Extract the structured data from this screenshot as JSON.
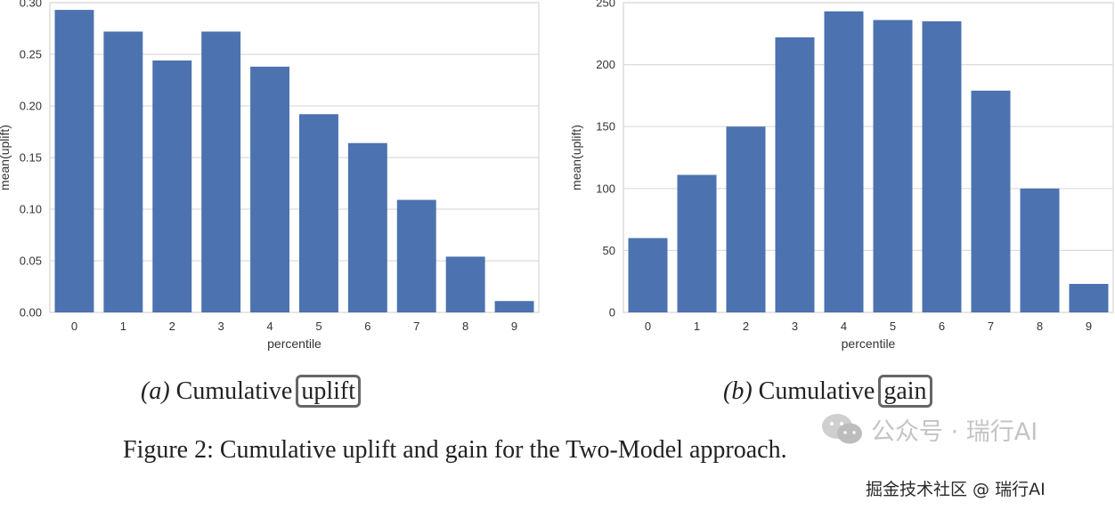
{
  "chart_data": [
    {
      "id": "a",
      "type": "bar",
      "categories": [
        "0",
        "1",
        "2",
        "3",
        "4",
        "5",
        "6",
        "7",
        "8",
        "9"
      ],
      "values": [
        0.293,
        0.272,
        0.244,
        0.272,
        0.238,
        0.192,
        0.164,
        0.109,
        0.054,
        0.011
      ],
      "xlabel": "percentile",
      "ylabel": "mean(uplift)",
      "ylim": [
        0,
        0.3
      ],
      "yticks": [
        "0.00",
        "0.05",
        "0.10",
        "0.15",
        "0.20",
        "0.25",
        "0.30"
      ],
      "grid": true,
      "bar_color": "#4c72b0"
    },
    {
      "id": "b",
      "type": "bar",
      "categories": [
        "0",
        "1",
        "2",
        "3",
        "4",
        "5",
        "6",
        "7",
        "8",
        "9"
      ],
      "values": [
        60,
        111,
        150,
        222,
        243,
        236,
        235,
        179,
        100,
        23
      ],
      "xlabel": "percentile",
      "ylabel": "mean(uplift)",
      "ylim": [
        0,
        250
      ],
      "yticks": [
        "0",
        "50",
        "100",
        "150",
        "200",
        "250"
      ],
      "grid": true,
      "bar_color": "#4c72b0"
    }
  ],
  "captions": {
    "a": {
      "label": "(a)",
      "text": "Cumulative",
      "boxed": "uplift"
    },
    "b": {
      "label": "(b)",
      "text": "Cumulative",
      "boxed": "gain"
    }
  },
  "figure_caption": "Figure 2: Cumulative uplift and gain for the Two-Model approach.",
  "watermarks": {
    "wechat": "公众号 · 瑞行AI",
    "site": "掘金技术社区 @ 瑞行AI"
  },
  "icons": {
    "wechat": "wechat-icon"
  }
}
